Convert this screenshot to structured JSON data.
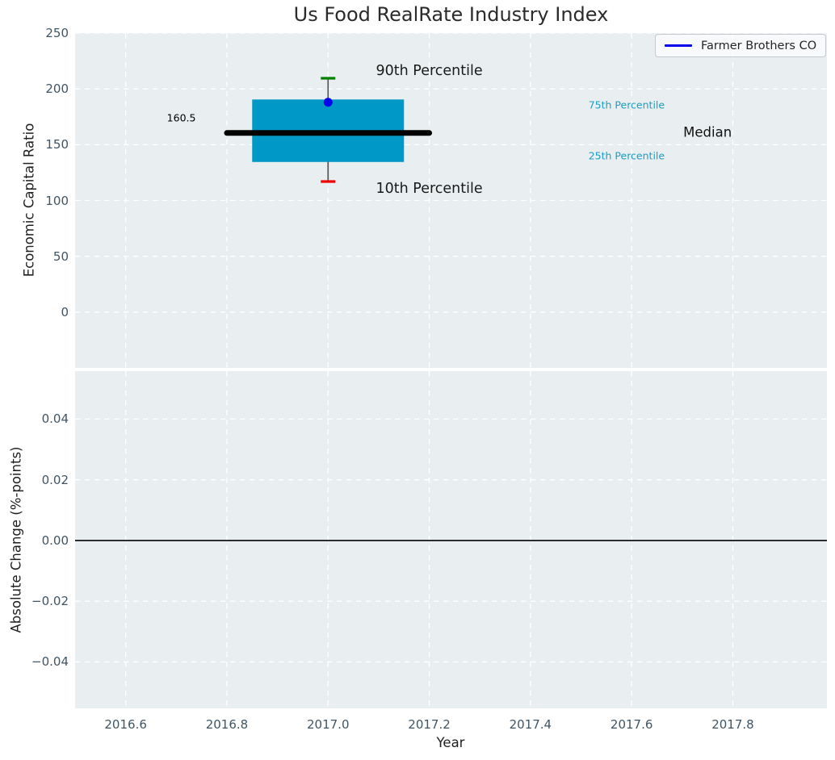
{
  "figure": {
    "title": "Us Food RealRate Industry Index",
    "background": "#ffffff",
    "plot_background": "#e9eef0",
    "grid_color": "#ffffff",
    "tick_color": "#3f5565"
  },
  "legend": {
    "label": "Farmer Brothers CO",
    "line_color": "#0000ee"
  },
  "axes": {
    "x": {
      "label": "Year",
      "lim": [
        2016.5,
        2017.986
      ],
      "ticks": [
        2016.6,
        2016.8,
        2017.0,
        2017.2,
        2017.4,
        2017.6,
        2017.8
      ],
      "tick_labels": [
        "2016.6",
        "2016.8",
        "2017.0",
        "2017.2",
        "2017.4",
        "2017.6",
        "2017.8"
      ]
    },
    "y_top": {
      "label": "Economic Capital Ratio",
      "lim": [
        -50,
        250
      ],
      "ticks": [
        0,
        50,
        100,
        150,
        200,
        250
      ],
      "tick_labels": [
        "0",
        "50",
        "100",
        "150",
        "200",
        "250"
      ]
    },
    "y_bottom": {
      "label": "Absolute Change (%-points)",
      "lim": [
        -0.0553,
        0.0558
      ],
      "ticks": [
        -0.04,
        -0.02,
        0,
        0.02,
        0.04
      ],
      "tick_labels": [
        "−0.04",
        "−0.02",
        "0.00",
        "0.02",
        "0.04"
      ]
    }
  },
  "chart_data": [
    {
      "type": "box",
      "panel": "top",
      "title": "Us Food RealRate Industry Index",
      "xlabel": "Year",
      "ylabel": "Economic Capital Ratio",
      "grid": "white dashed",
      "legend_position": "upper right",
      "x_center": 2017.0,
      "box_x_range": [
        2016.85,
        2017.15
      ],
      "median_x_range": [
        2016.8,
        2017.2
      ],
      "percentiles": {
        "p10": 117,
        "p25": 134.5,
        "median": 160.5,
        "p75": 190.5,
        "p90": 209.5
      },
      "median_label": "160.5",
      "company_point": {
        "name": "Farmer Brothers CO",
        "x": 2017.0,
        "value": 188
      },
      "colors": {
        "box": "#0098c6",
        "median": "#000000",
        "whisker": "#555555",
        "p90_cap": "#008000",
        "p10_cap": "#ee0000",
        "company_point": "#0000ee"
      },
      "annotations": [
        {
          "id": "median-value-label",
          "text": "160.5",
          "x": 2016.71,
          "y": 174,
          "color": "#000000",
          "size": 12.5
        },
        {
          "id": "p90-label",
          "text": "90th Percentile",
          "x": 2017.2,
          "y": 216,
          "color": "#1a1a1a",
          "size": 17.5
        },
        {
          "id": "p10-label",
          "text": "10th Percentile",
          "x": 2017.2,
          "y": 110.5,
          "color": "#1a1a1a",
          "size": 17.5
        },
        {
          "id": "p75-label",
          "text": "75th Percentile",
          "x": 2017.59,
          "y": 185.7,
          "color": "#1e9dc4",
          "size": 12.5
        },
        {
          "id": "p25-label",
          "text": "25th Percentile",
          "x": 2017.59,
          "y": 140,
          "color": "#1e9dc4",
          "size": 12.5
        },
        {
          "id": "median-label",
          "text": "Median",
          "x": 2017.75,
          "y": 161,
          "color": "#111111",
          "size": 16.5
        }
      ]
    },
    {
      "type": "line",
      "panel": "bottom",
      "ylabel": "Absolute Change (%-points)",
      "zero_line": 0.0,
      "zero_line_color": "#000000",
      "series": []
    }
  ]
}
